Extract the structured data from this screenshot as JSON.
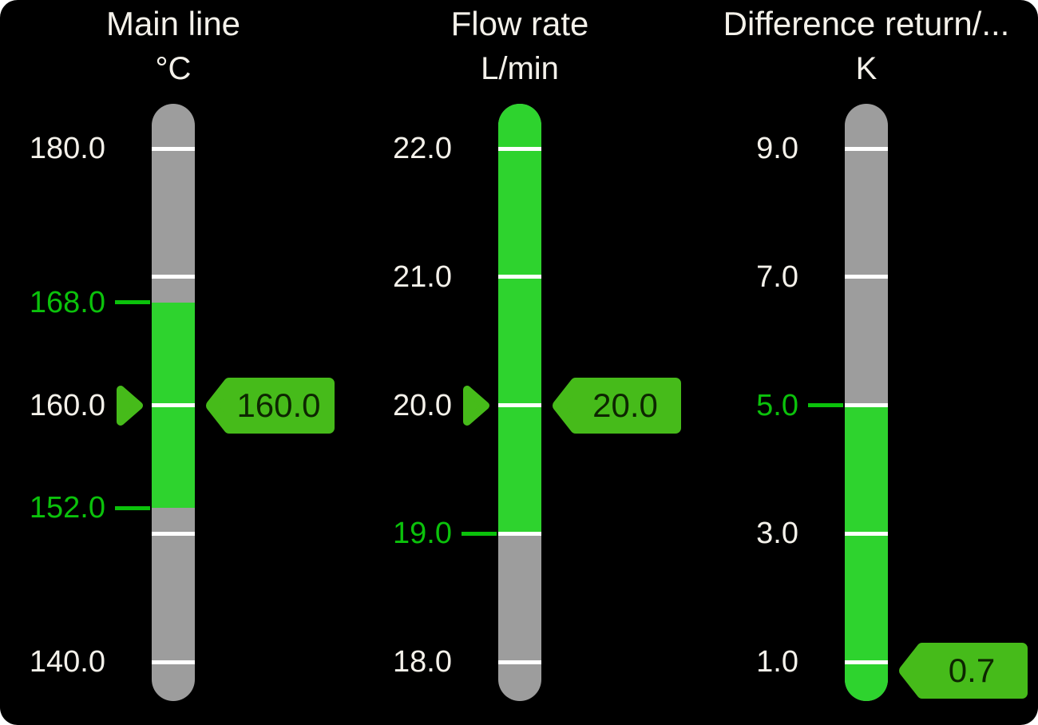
{
  "colors": {
    "panel_background": "#000000",
    "page_background": "#ffffff",
    "bar_gray": "#9d9d9d",
    "bar_green": "#2ed32e",
    "tick_white": "#ffffff",
    "label_white": "#f4f1ea",
    "limit_green": "#0bc20b",
    "indicator_green": "#46bb1a",
    "badge_text": "#0d2601"
  },
  "gauges": [
    {
      "name": "main-line",
      "title": "Main line",
      "unit": "°C",
      "axis_ticks": [
        180,
        170,
        160,
        150,
        140
      ],
      "tick_labels": [
        {
          "text": "180.0",
          "value": 180,
          "type": "normal"
        },
        {
          "text": "168.0",
          "value": 168,
          "type": "limit"
        },
        {
          "text": "160.0",
          "value": 160,
          "type": "normal"
        },
        {
          "text": "152.0",
          "value": 152,
          "type": "limit"
        },
        {
          "text": "140.0",
          "value": 140,
          "type": "normal"
        }
      ],
      "green_zone": {
        "from": 168,
        "to": 152
      },
      "setpoint_marker": 160,
      "value": {
        "text": "160.0",
        "value": 160
      }
    },
    {
      "name": "flow-rate",
      "title": "Flow rate",
      "unit": "L/min",
      "axis_ticks": [
        22,
        21,
        20,
        19,
        18
      ],
      "tick_labels": [
        {
          "text": "22.0",
          "value": 22,
          "type": "normal"
        },
        {
          "text": "21.0",
          "value": 21,
          "type": "normal"
        },
        {
          "text": "20.0",
          "value": 20,
          "type": "normal"
        },
        {
          "text": "19.0",
          "value": 19,
          "type": "limit"
        },
        {
          "text": "18.0",
          "value": 18,
          "type": "normal"
        }
      ],
      "green_zone": {
        "from": "top",
        "to": 19
      },
      "setpoint_marker": 20,
      "value": {
        "text": "20.0",
        "value": 20
      }
    },
    {
      "name": "difference-return",
      "title": "Difference return/...",
      "unit": "K",
      "axis_ticks": [
        9,
        7,
        5,
        3,
        1
      ],
      "tick_labels": [
        {
          "text": "9.0",
          "value": 9,
          "type": "normal"
        },
        {
          "text": "7.0",
          "value": 7,
          "type": "normal"
        },
        {
          "text": "5.0",
          "value": 5,
          "type": "limit"
        },
        {
          "text": "3.0",
          "value": 3,
          "type": "normal"
        },
        {
          "text": "1.0",
          "value": 1,
          "type": "normal"
        }
      ],
      "green_zone": {
        "from": 5,
        "to": "bottom"
      },
      "setpoint_marker": null,
      "value": {
        "text": "0.7",
        "value": 0.7
      }
    }
  ]
}
